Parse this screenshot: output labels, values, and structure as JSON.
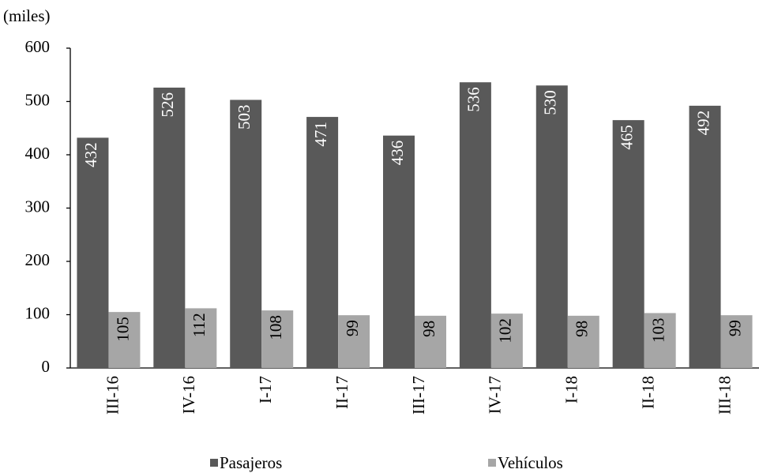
{
  "chart_data": {
    "type": "grouped-bar",
    "y_label": "(miles)",
    "categories": [
      "III-16",
      "IV-16",
      "I-17",
      "II-17",
      "III-17",
      "IV-17",
      "I-18",
      "II-18",
      "III-18"
    ],
    "series": [
      {
        "name": "Pasajeros",
        "color": "#595959",
        "values": [
          432,
          526,
          503,
          471,
          436,
          536,
          530,
          465,
          492
        ]
      },
      {
        "name": "Vehículos",
        "color": "#a6a6a6",
        "values": [
          105,
          112,
          108,
          99,
          98,
          102,
          98,
          103,
          99
        ]
      }
    ],
    "ylim": [
      0,
      600
    ],
    "yticks": [
      0,
      100,
      200,
      300,
      400,
      500,
      600
    ],
    "grid": false,
    "legend": "bottom"
  }
}
